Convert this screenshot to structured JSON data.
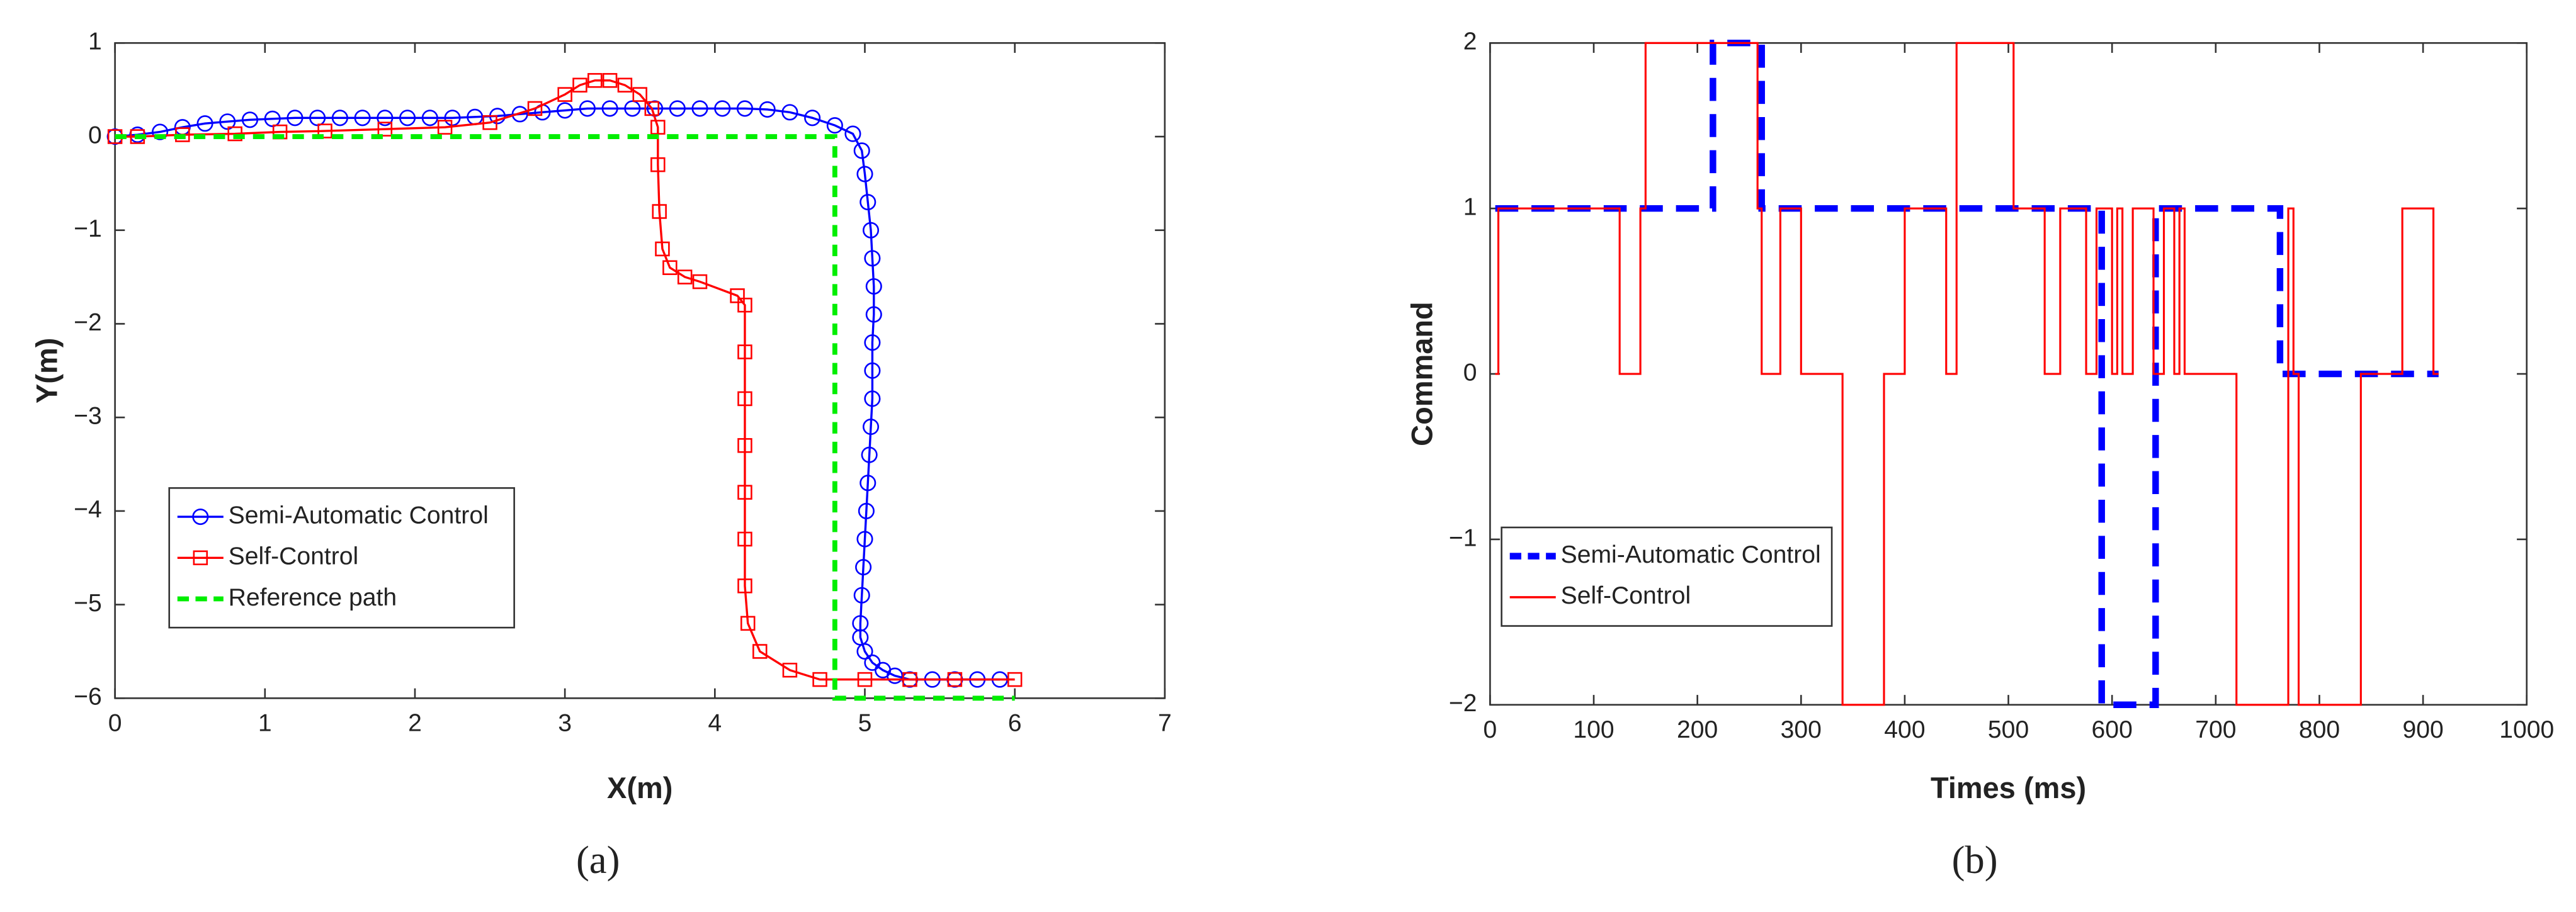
{
  "chart_data": [
    {
      "type": "line",
      "xlabel": "X(m)",
      "ylabel": "Y(m)",
      "caption": "(a)",
      "xlim": [
        0,
        7
      ],
      "ylim": [
        -6,
        1
      ],
      "xticks": [
        0,
        1,
        2,
        3,
        4,
        5,
        6,
        7
      ],
      "yticks": [
        {
          "value": -6,
          "label": "−6"
        },
        {
          "value": -5,
          "label": "−5"
        },
        {
          "value": -4,
          "label": "−4"
        },
        {
          "value": -3,
          "label": "−3"
        },
        {
          "value": -2,
          "label": "−2"
        },
        {
          "value": -1,
          "label": "−1"
        },
        0,
        1
      ],
      "legend": "lower left",
      "grid": false,
      "series": [
        {
          "name": "Semi-Automatic Control",
          "color": "#0000ff",
          "marker": "circle",
          "dash": false,
          "x": [
            0,
            0.15,
            0.3,
            0.45,
            0.6,
            0.75,
            0.9,
            1.05,
            1.2,
            1.35,
            1.5,
            1.65,
            1.8,
            1.95,
            2.1,
            2.25,
            2.4,
            2.55,
            2.7,
            2.85,
            3.0,
            3.15,
            3.3,
            3.45,
            3.6,
            3.75,
            3.9,
            4.05,
            4.2,
            4.35,
            4.5,
            4.65,
            4.8,
            4.92,
            4.98,
            5.0,
            5.02,
            5.04,
            5.05,
            5.06,
            5.06,
            5.05,
            5.05,
            5.05,
            5.04,
            5.03,
            5.02,
            5.01,
            5.0,
            4.99,
            4.98,
            4.97,
            4.97,
            5.0,
            5.05,
            5.12,
            5.2,
            5.3,
            5.45,
            5.6,
            5.75,
            5.9
          ],
          "values": [
            0,
            0.02,
            0.05,
            0.1,
            0.14,
            0.16,
            0.18,
            0.19,
            0.2,
            0.2,
            0.2,
            0.2,
            0.2,
            0.2,
            0.2,
            0.2,
            0.21,
            0.22,
            0.24,
            0.26,
            0.28,
            0.3,
            0.3,
            0.3,
            0.3,
            0.3,
            0.3,
            0.3,
            0.3,
            0.29,
            0.26,
            0.2,
            0.12,
            0.03,
            -0.15,
            -0.4,
            -0.7,
            -1.0,
            -1.3,
            -1.6,
            -1.9,
            -2.2,
            -2.5,
            -2.8,
            -3.1,
            -3.4,
            -3.7,
            -4.0,
            -4.3,
            -4.6,
            -4.9,
            -5.2,
            -5.35,
            -5.5,
            -5.62,
            -5.7,
            -5.76,
            -5.8,
            -5.8,
            -5.8,
            -5.8,
            -5.8
          ]
        },
        {
          "name": "Self-Control",
          "color": "#ff0000",
          "marker": "square",
          "dash": false,
          "x": [
            0,
            0.15,
            0.45,
            0.8,
            1.1,
            1.4,
            1.8,
            2.2,
            2.5,
            2.8,
            3.0,
            3.1,
            3.2,
            3.3,
            3.4,
            3.5,
            3.58,
            3.62,
            3.62,
            3.63,
            3.65,
            3.7,
            3.8,
            3.9,
            4.15,
            4.2,
            4.2,
            4.2,
            4.2,
            4.2,
            4.2,
            4.2,
            4.22,
            4.3,
            4.5,
            4.7,
            5.0,
            5.3,
            5.6,
            6.0
          ],
          "values": [
            0,
            0,
            0.02,
            0.03,
            0.05,
            0.06,
            0.08,
            0.1,
            0.15,
            0.3,
            0.45,
            0.55,
            0.6,
            0.6,
            0.55,
            0.45,
            0.3,
            0.1,
            -0.3,
            -0.8,
            -1.2,
            -1.4,
            -1.5,
            -1.55,
            -1.7,
            -1.8,
            -2.3,
            -2.8,
            -3.3,
            -3.8,
            -4.3,
            -4.8,
            -5.2,
            -5.5,
            -5.7,
            -5.8,
            -5.8,
            -5.8,
            -5.8,
            -5.8
          ]
        },
        {
          "name": "Reference path",
          "color": "#00ee00",
          "marker": null,
          "dash": true,
          "x": [
            0,
            4.8,
            4.8,
            6
          ],
          "values": [
            0,
            0,
            -6,
            -6
          ]
        }
      ]
    },
    {
      "type": "step",
      "xlabel": "Times (ms)",
      "ylabel": "Command",
      "caption": "(b)",
      "xlim": [
        0,
        1000
      ],
      "ylim": [
        -2,
        2
      ],
      "xticks": [
        0,
        100,
        200,
        300,
        400,
        500,
        600,
        700,
        800,
        900,
        1000
      ],
      "yticks": [
        {
          "value": -2,
          "label": "−2"
        },
        {
          "value": -1,
          "label": "−1"
        },
        0,
        1,
        2
      ],
      "legend": "lower left",
      "grid": false,
      "series": [
        {
          "name": "Semi-Automatic Control",
          "color": "#0000ff",
          "dash": true,
          "width": 4,
          "x": [
            5,
            215,
            262,
            590,
            642,
            762,
            915
          ],
          "values": [
            1,
            2,
            1,
            -2,
            1,
            0,
            0
          ]
        },
        {
          "name": "Self-Control",
          "color": "#ff0000",
          "dash": false,
          "width": 1.2,
          "x": [
            5,
            8,
            125,
            145,
            150,
            258,
            262,
            280,
            300,
            340,
            380,
            400,
            440,
            450,
            505,
            535,
            550,
            575,
            585,
            600,
            605,
            610,
            620,
            640,
            650,
            660,
            665,
            670,
            720,
            770,
            775,
            780,
            840,
            880,
            910,
            915
          ],
          "values": [
            0,
            1,
            0,
            1,
            2,
            1,
            0,
            1,
            0,
            -2,
            0,
            1,
            0,
            2,
            1,
            0,
            1,
            0,
            1,
            0,
            1,
            0,
            1,
            0,
            1,
            0,
            1,
            0,
            -2,
            1,
            0,
            -2,
            0,
            1,
            0,
            0
          ]
        }
      ]
    }
  ]
}
